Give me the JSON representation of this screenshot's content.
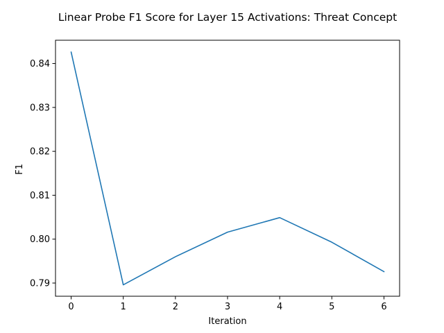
{
  "chart_data": {
    "type": "line",
    "title": "Linear Probe F1 Score for Layer 15 Activations: Threat Concept",
    "xlabel": "Iteration",
    "ylabel": "F1",
    "x": [
      0,
      1,
      2,
      3,
      4,
      5,
      6
    ],
    "series": [
      {
        "name": "",
        "values": [
          0.8426,
          0.7896,
          0.796,
          0.8016,
          0.8049,
          0.7993,
          0.7926
        ],
        "color": "#1f77b4"
      }
    ],
    "xlim": [
      -0.3,
      6.3
    ],
    "ylim": [
      0.787,
      0.8453
    ],
    "xticks": [
      0,
      1,
      2,
      3,
      4,
      5,
      6
    ],
    "xtick_labels": [
      "0",
      "1",
      "2",
      "3",
      "4",
      "5",
      "6"
    ],
    "yticks": [
      0.79,
      0.8,
      0.81,
      0.82,
      0.83,
      0.84
    ],
    "ytick_labels": [
      "0.79",
      "0.80",
      "0.81",
      "0.82",
      "0.83",
      "0.84"
    ],
    "grid": false,
    "legend": "none"
  }
}
